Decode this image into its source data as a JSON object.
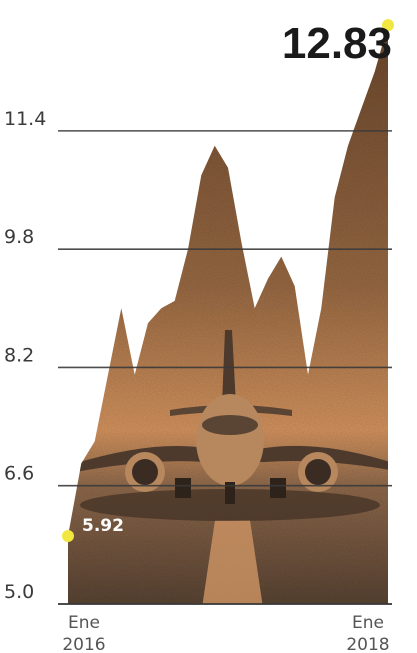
{
  "chart_data": {
    "type": "area",
    "title": "",
    "xlabel": "",
    "ylabel": "",
    "x_tick_labels": [
      {
        "line1": "Ene",
        "line2": "2016"
      },
      {
        "line1": "Ene",
        "line2": "2018"
      }
    ],
    "x": [
      "Ene 2016",
      "",
      "",
      "",
      "",
      "",
      "",
      "",
      "",
      "",
      "",
      "",
      "",
      "",
      "",
      "",
      "",
      "",
      "",
      "",
      "",
      "",
      "",
      "",
      "Ene 2018"
    ],
    "y_ticks": [
      5.0,
      6.6,
      8.2,
      9.8,
      11.4
    ],
    "y_tick_labels": [
      "5.0",
      "6.6",
      "8.2",
      "9.8",
      "11.4"
    ],
    "ylim": [
      5.0,
      12.9
    ],
    "values": [
      5.92,
      6.9,
      7.2,
      8.1,
      9.0,
      8.1,
      8.8,
      9.0,
      9.1,
      9.8,
      10.8,
      11.2,
      10.9,
      9.9,
      9.0,
      9.4,
      9.7,
      9.3,
      8.1,
      9.0,
      10.5,
      11.2,
      11.7,
      12.2,
      12.83
    ],
    "start_value_label": "5.92",
    "end_value_label": "12.83",
    "grid": "horizontal",
    "colors": {
      "area_top": "#8a5a35",
      "area_mid": "#c1875a",
      "area_glow": "#e3a06a",
      "area_bottom": "#5a4535",
      "grid": "#3a3a3a",
      "marker": "#f2e640",
      "axis": "#222222"
    }
  }
}
